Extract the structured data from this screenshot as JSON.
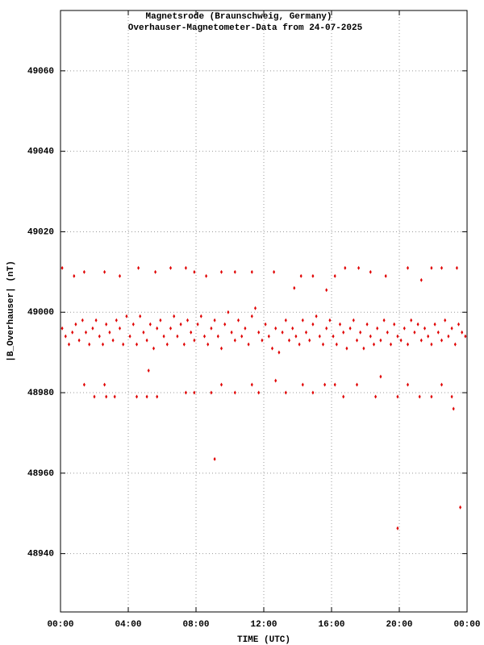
{
  "chart_data": {
    "type": "scatter",
    "title": "Magnetsrode (Braunschweig, Germany)",
    "subtitle": "Overhauser-Magnetometer-Data from 24-07-2025",
    "x_label": "TIME (UTC)",
    "y_label": "|B_Overhauser| (nT)",
    "color": "#e00000",
    "grid": true,
    "xlim": [
      0,
      24
    ],
    "xticks": [
      {
        "value": 0,
        "label": "00:00"
      },
      {
        "value": 4,
        "label": "04:00"
      },
      {
        "value": 8,
        "label": "08:00"
      },
      {
        "value": 12,
        "label": "12:00"
      },
      {
        "value": 16,
        "label": "16:00"
      },
      {
        "value": 20,
        "label": "20:00"
      },
      {
        "value": 24,
        "label": "00:00"
      }
    ],
    "ylim": [
      48925.5,
      49075
    ],
    "yticks": [
      48940,
      48960,
      48980,
      49000,
      49020,
      49040,
      49060
    ],
    "x": [
      0.1,
      0.3,
      0.5,
      0.7,
      0.9,
      1.1,
      1.3,
      1.5,
      1.7,
      1.9,
      2.1,
      2.3,
      2.5,
      2.7,
      2.9,
      3.1,
      3.3,
      3.5,
      3.7,
      3.9,
      4.1,
      4.3,
      4.5,
      4.7,
      4.9,
      5.1,
      5.3,
      5.5,
      5.7,
      5.9,
      6.1,
      6.3,
      6.5,
      6.7,
      6.9,
      7.1,
      7.3,
      7.5,
      7.7,
      7.9,
      8.1,
      8.3,
      8.5,
      8.7,
      8.9,
      9.1,
      9.3,
      9.5,
      9.7,
      9.9,
      10.1,
      10.3,
      10.5,
      10.7,
      10.9,
      11.1,
      11.3,
      11.5,
      11.7,
      11.9,
      12.1,
      12.3,
      12.5,
      12.7,
      12.9,
      13.1,
      13.3,
      13.5,
      13.7,
      13.9,
      14.1,
      14.3,
      14.5,
      14.7,
      14.9,
      15.1,
      15.3,
      15.5,
      15.7,
      15.9,
      16.1,
      16.3,
      16.5,
      16.7,
      16.9,
      17.1,
      17.3,
      17.5,
      17.7,
      17.9,
      18.1,
      18.3,
      18.5,
      18.7,
      18.9,
      19.1,
      19.3,
      19.5,
      19.7,
      19.9,
      20.1,
      20.3,
      20.5,
      20.7,
      20.9,
      21.1,
      21.3,
      21.5,
      21.7,
      21.9,
      22.1,
      22.3,
      22.5,
      22.7,
      22.9,
      23.1,
      23.3,
      23.5,
      23.7,
      23.9,
      0.1,
      0.8,
      1.4,
      2.6,
      3.5,
      4.6,
      5.6,
      6.5,
      7.4,
      7.9,
      8.6,
      9.5,
      10.3,
      11.3,
      12.6,
      13.8,
      14.2,
      14.9,
      15.7,
      16.2,
      16.8,
      17.6,
      18.3,
      19.2,
      20.5,
      21.3,
      21.9,
      22.5,
      23.4,
      1.4,
      2.0,
      2.6,
      2.7,
      3.2,
      4.5,
      5.1,
      5.2,
      5.7,
      7.4,
      7.9,
      8.9,
      9.5,
      10.3,
      11.3,
      11.7,
      12.7,
      13.3,
      14.3,
      14.9,
      15.6,
      16.2,
      16.7,
      17.5,
      18.6,
      18.9,
      19.9,
      20.5,
      21.2,
      21.9,
      22.5,
      23.1,
      23.2,
      9.1,
      19.9,
      23.6
    ],
    "values": [
      48996,
      48994,
      48992,
      48995,
      48997,
      48993,
      48998,
      48995,
      48992,
      48996,
      48998,
      48994,
      48992,
      48997,
      48995,
      48993,
      48998,
      48996,
      48992,
      48999,
      48994,
      48997,
      48992,
      48999,
      48995,
      48993,
      48997,
      48991,
      48996,
      48998,
      48994,
      48992,
      48996,
      48999,
      48994,
      48997,
      48992,
      48998,
      48995,
      48993,
      48997,
      48999,
      48994,
      48992,
      48996,
      48998,
      48994,
      48991,
      48997,
      49000,
      48995,
      48993,
      48998,
      48994,
      48996,
      48992,
      48999,
      49001,
      48995,
      48993,
      48997,
      48994,
      48991,
      48996,
      48990,
      48995,
      48998,
      48993,
      48996,
      48994,
      48992,
      48998,
      48995,
      48993,
      48997,
      48999,
      48994,
      48992,
      48996,
      48998,
      48994,
      48992,
      48997,
      48995,
      48991,
      48996,
      48998,
      48993,
      48995,
      48991,
      48997,
      48994,
      48992,
      48996,
      48993,
      48998,
      48995,
      48992,
      48997,
      48994,
      48993,
      48996,
      48992,
      48998,
      48995,
      48997,
      48993,
      48996,
      48994,
      48992,
      48997,
      48995,
      48993,
      48998,
      48994,
      48996,
      48992,
      48997,
      48995,
      48994,
      49011,
      49009,
      49010,
      49010,
      49009,
      49011,
      49010,
      49011,
      49011,
      49010,
      49009,
      49010,
      49010,
      49010,
      49010,
      49006,
      49009,
      49009,
      49005.5,
      49009,
      49011,
      49011,
      49010,
      49009,
      49011,
      49008,
      49011,
      49011,
      49011,
      48982,
      48979,
      48982,
      48979,
      48979,
      48979,
      48979,
      48985.5,
      48979,
      48980,
      48980,
      48980,
      48982,
      48980,
      48982,
      48980,
      48983,
      48980,
      48982,
      48980,
      48982,
      48982,
      48979,
      48982,
      48979,
      48984,
      48979,
      48982,
      48979,
      48979,
      48982,
      48979,
      48976,
      48963.5,
      48946.3,
      48951.5
    ]
  }
}
